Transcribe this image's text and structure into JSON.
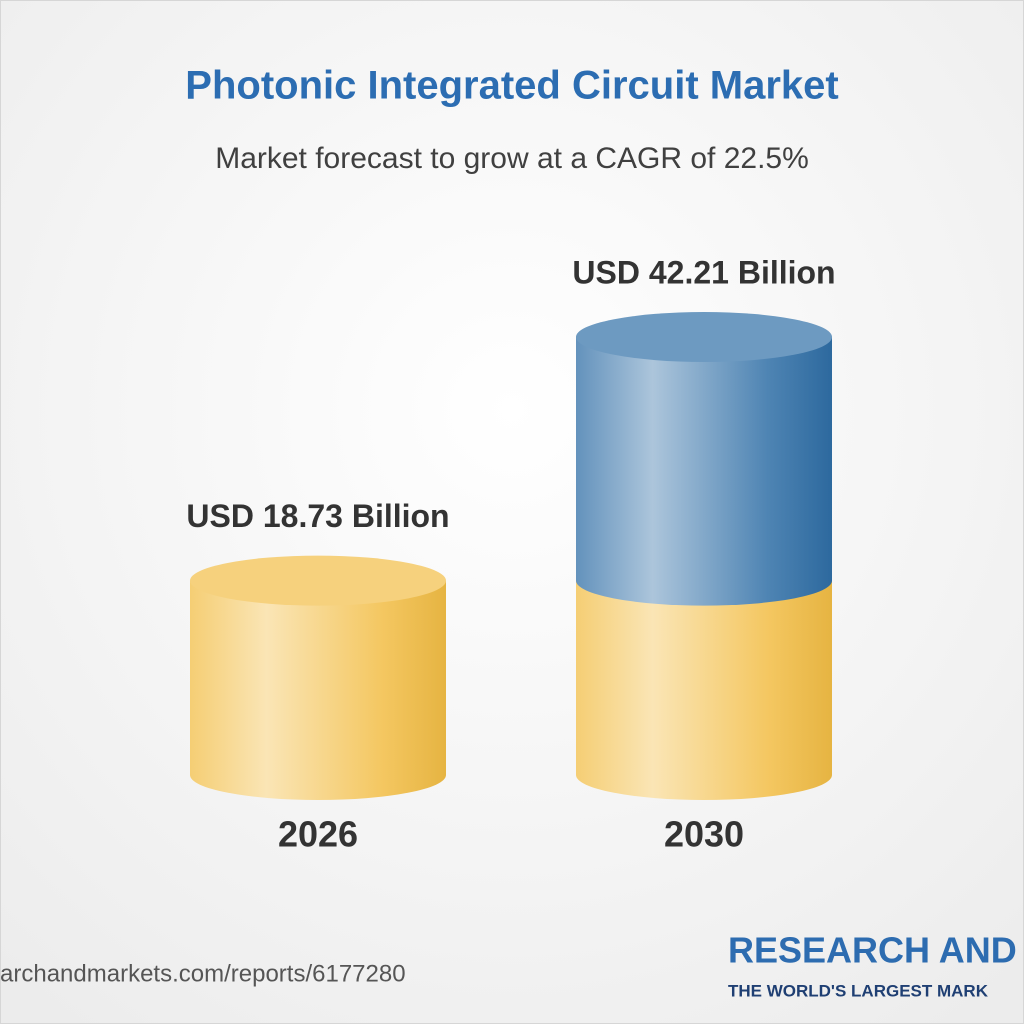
{
  "chart_data": {
    "type": "cylinder",
    "title": "Photonic Integrated Circuit Market",
    "subtitle": "Market forecast to grow at a CAGR of 22.5%",
    "categories": [
      "2026",
      "2030"
    ],
    "values": [
      18.73,
      42.21
    ],
    "value_labels": [
      "USD 18.73 Billion",
      "USD 42.21 Billion"
    ],
    "color": "#f2bd45",
    "growth_color": "#2f6ea6",
    "source": "archandmarkets.com/reports/6177280",
    "logo": {
      "name": "RESEARCH AND",
      "tagline": "THE WORLD'S LARGEST MARK"
    }
  }
}
